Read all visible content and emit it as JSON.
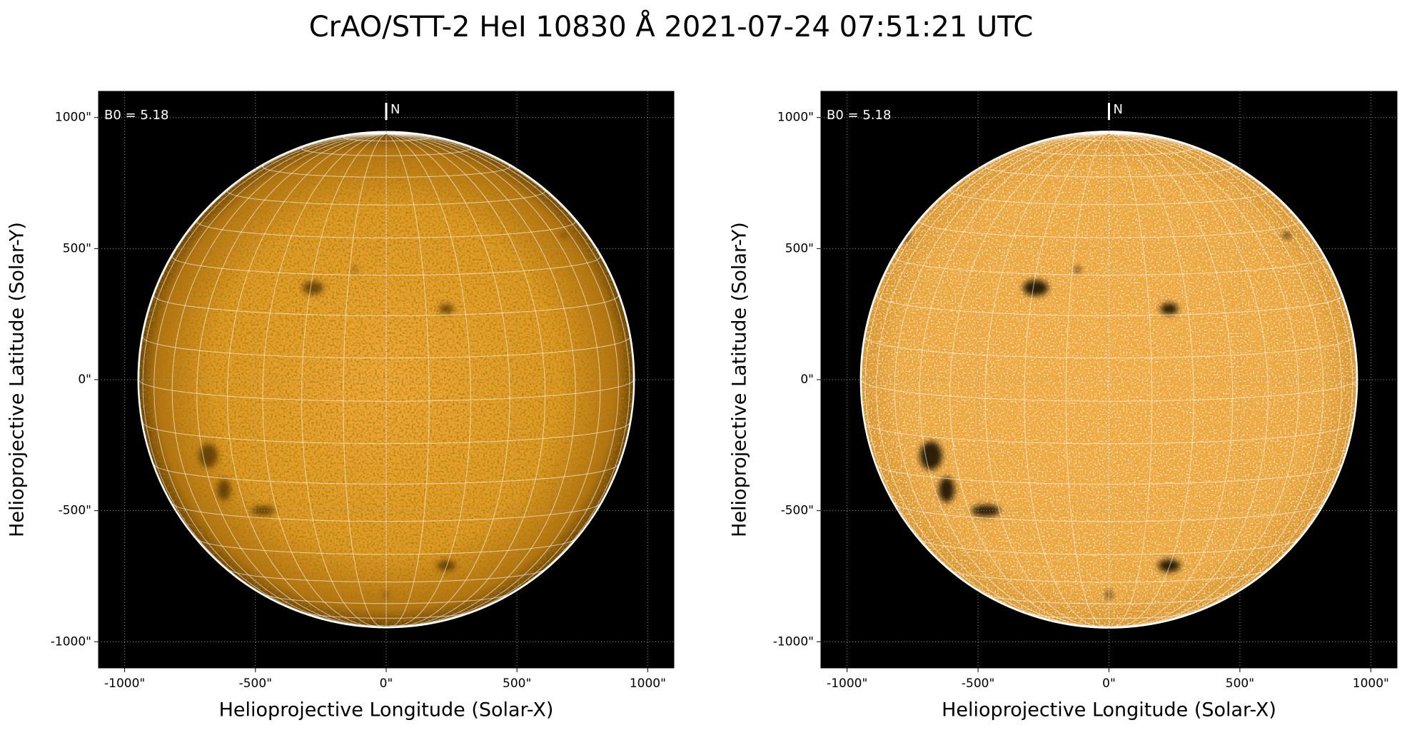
{
  "title": "CrAO/STT-2 HeI 10830 Å 2021-07-24 07:51:21 UTC",
  "chart_data": [
    {
      "type": "image",
      "x_label": "Helioprojective Longitude (Solar-X)",
      "y_label": "Helioprojective Latitude (Solar-Y)",
      "xlim": [
        -1100,
        1100
      ],
      "ylim": [
        -1100,
        1100
      ],
      "xticks": [
        {
          "value": -1000,
          "label": "-1000\""
        },
        {
          "value": -500,
          "label": "-500\""
        },
        {
          "value": 0,
          "label": "0\""
        },
        {
          "value": 500,
          "label": "500\""
        },
        {
          "value": 1000,
          "label": "1000\""
        }
      ],
      "yticks": [
        {
          "value": -1000,
          "label": "-1000\""
        },
        {
          "value": -500,
          "label": "-500\""
        },
        {
          "value": 0,
          "label": "0\""
        },
        {
          "value": 500,
          "label": "500\""
        },
        {
          "value": 1000,
          "label": "1000\""
        }
      ],
      "grid": true,
      "annotation": "B0 = 5.18",
      "north_label": "N"
    },
    {
      "type": "image",
      "x_label": "Helioprojective Longitude (Solar-X)",
      "y_label": "Helioprojective Latitude (Solar-Y)",
      "xlim": [
        -1100,
        1100
      ],
      "ylim": [
        -1100,
        1100
      ],
      "xticks": [
        {
          "value": -1000,
          "label": "-1000\""
        },
        {
          "value": -500,
          "label": "-500\""
        },
        {
          "value": 0,
          "label": "0\""
        },
        {
          "value": 500,
          "label": "500\""
        },
        {
          "value": 1000,
          "label": "1000\""
        }
      ],
      "yticks": [
        {
          "value": -1000,
          "label": "-1000\""
        },
        {
          "value": -500,
          "label": "-500\""
        },
        {
          "value": 0,
          "label": "0\""
        },
        {
          "value": 500,
          "label": "500\""
        },
        {
          "value": 1000,
          "label": "1000\""
        }
      ],
      "grid": true,
      "annotation": "B0 = 5.18",
      "north_label": "N"
    }
  ]
}
